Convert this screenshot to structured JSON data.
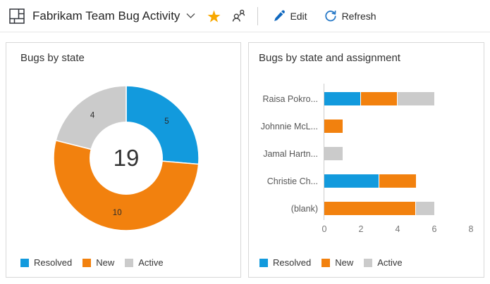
{
  "header": {
    "title": "Fabrikam Team Bug Activity",
    "edit_label": "Edit",
    "refresh_label": "Refresh",
    "colors": {
      "accent_blue": "#1068bf",
      "star_gold": "#f8a800",
      "icon_dark": "#30343a"
    }
  },
  "chart_data": [
    {
      "type": "pie",
      "title": "Bugs by state",
      "total_label": "19",
      "slices": [
        {
          "label": "Resolved",
          "value": 5,
          "color": "#129add"
        },
        {
          "label": "New",
          "value": 10,
          "color": "#f2810e"
        },
        {
          "label": "Active",
          "value": 4,
          "color": "#cbcbcb"
        }
      ],
      "legend_position": "bottom"
    },
    {
      "type": "bar",
      "orientation": "horizontal",
      "title": "Bugs by state and assignment",
      "categories": [
        "Raisa Pokro...",
        "Johnnie McL...",
        "Jamal Hartn...",
        "Christie Ch...",
        "(blank)"
      ],
      "series": [
        {
          "name": "Resolved",
          "color": "#129add",
          "values": [
            2,
            0,
            0,
            3,
            0
          ]
        },
        {
          "name": "New",
          "color": "#f2810e",
          "values": [
            2,
            1,
            0,
            2,
            5
          ]
        },
        {
          "name": "Active",
          "color": "#cbcbcb",
          "values": [
            2,
            0,
            1,
            0,
            1
          ]
        }
      ],
      "xlim": [
        0,
        8
      ],
      "x_ticks": [
        0,
        2,
        4,
        6,
        8
      ],
      "grid": false,
      "legend_position": "bottom"
    }
  ]
}
